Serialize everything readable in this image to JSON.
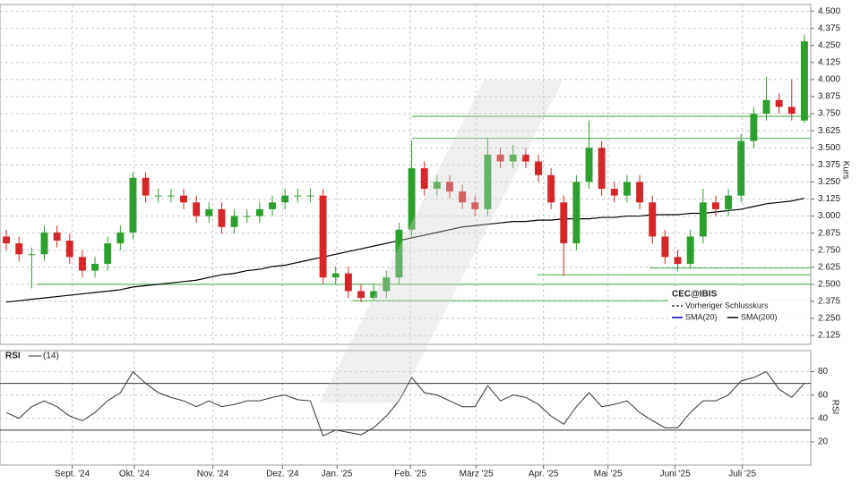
{
  "chart_data": [
    {
      "type": "candlestick",
      "ylabel": "Kurs",
      "categories": [
        null,
        null,
        null,
        null,
        null,
        null,
        null,
        null,
        null,
        null,
        null,
        null,
        null,
        null,
        null,
        null,
        null,
        null,
        null,
        null,
        null,
        null,
        null,
        null,
        null,
        null,
        null,
        null,
        null,
        null,
        null,
        null,
        null,
        null,
        null,
        null,
        null,
        null,
        null,
        null,
        null,
        null,
        null,
        null,
        null,
        null,
        null,
        null,
        null,
        null,
        null,
        null,
        null,
        null,
        null,
        null,
        null,
        null,
        null,
        null,
        null,
        null,
        null,
        null
      ],
      "open": [
        2.85,
        2.8,
        2.72,
        2.72,
        2.88,
        2.82,
        2.7,
        2.6,
        2.65,
        2.8,
        2.88,
        3.28,
        3.15,
        3.15,
        3.15,
        3.1,
        3.0,
        3.05,
        2.92,
        3.0,
        3.0,
        3.05,
        3.1,
        3.15,
        3.15,
        3.15,
        2.55,
        2.58,
        2.45,
        2.4,
        2.45,
        2.55,
        2.9,
        3.35,
        3.2,
        3.25,
        3.18,
        3.1,
        3.05,
        3.45,
        3.4,
        3.45,
        3.4,
        3.3,
        3.1,
        2.8,
        3.25,
        3.5,
        3.2,
        3.15,
        3.25,
        3.1,
        2.85,
        2.7,
        2.65,
        2.85,
        3.1,
        3.05,
        3.15,
        3.55,
        3.75,
        3.85,
        3.8,
        3.7
      ],
      "high": [
        2.9,
        2.85,
        2.77,
        2.93,
        2.93,
        2.87,
        2.75,
        2.7,
        2.85,
        2.93,
        3.32,
        3.32,
        3.2,
        3.2,
        3.2,
        3.15,
        3.1,
        3.1,
        3.05,
        3.05,
        3.1,
        3.15,
        3.2,
        3.2,
        3.2,
        3.2,
        2.63,
        2.63,
        2.5,
        2.5,
        2.6,
        2.95,
        3.55,
        3.4,
        3.3,
        3.3,
        3.23,
        3.15,
        3.57,
        3.5,
        3.52,
        3.5,
        3.45,
        3.35,
        3.15,
        3.3,
        3.7,
        3.55,
        3.25,
        3.3,
        3.3,
        3.15,
        2.9,
        2.75,
        2.9,
        3.2,
        3.15,
        3.2,
        3.6,
        3.8,
        4.02,
        3.9,
        4.0,
        4.33
      ],
      "low": [
        2.75,
        2.67,
        2.47,
        2.67,
        2.77,
        2.65,
        2.55,
        2.55,
        2.6,
        2.75,
        2.83,
        3.1,
        3.1,
        3.1,
        3.05,
        2.95,
        2.95,
        2.87,
        2.87,
        2.95,
        2.95,
        3.0,
        3.05,
        3.1,
        3.1,
        2.5,
        2.5,
        2.4,
        2.37,
        2.38,
        2.4,
        2.5,
        2.85,
        3.15,
        3.15,
        3.13,
        3.05,
        3.0,
        3.0,
        3.35,
        3.35,
        3.35,
        3.25,
        3.05,
        2.56,
        2.75,
        3.2,
        3.15,
        3.1,
        3.1,
        3.05,
        2.8,
        2.65,
        2.6,
        2.62,
        2.8,
        3.0,
        3.0,
        3.1,
        3.5,
        3.7,
        3.75,
        3.7,
        3.68
      ],
      "close": [
        2.8,
        2.72,
        2.72,
        2.88,
        2.82,
        2.7,
        2.6,
        2.65,
        2.8,
        2.88,
        3.28,
        3.15,
        3.15,
        3.15,
        3.1,
        3.0,
        3.05,
        2.92,
        3.0,
        3.0,
        3.05,
        3.1,
        3.15,
        3.15,
        3.15,
        2.55,
        2.58,
        2.45,
        2.4,
        2.45,
        2.55,
        2.9,
        3.35,
        3.2,
        3.25,
        3.18,
        3.1,
        3.05,
        3.45,
        3.4,
        3.45,
        3.4,
        3.3,
        3.1,
        2.8,
        3.25,
        3.5,
        3.2,
        3.15,
        3.25,
        3.1,
        2.85,
        2.7,
        2.65,
        2.85,
        3.1,
        3.05,
        3.15,
        3.55,
        3.75,
        3.85,
        3.8,
        3.75,
        4.28
      ],
      "up_color": "#2ca02c",
      "down_color": "#d62728",
      "series": [
        {
          "name": "SMA(200)",
          "color": "#000000",
          "values": [
            2.37,
            2.38,
            2.39,
            2.4,
            2.41,
            2.42,
            2.43,
            2.44,
            2.45,
            2.46,
            2.48,
            2.49,
            2.5,
            2.51,
            2.52,
            2.53,
            2.55,
            2.57,
            2.58,
            2.6,
            2.61,
            2.63,
            2.64,
            2.66,
            2.68,
            2.7,
            2.72,
            2.74,
            2.76,
            2.78,
            2.8,
            2.82,
            2.84,
            2.86,
            2.88,
            2.9,
            2.92,
            2.93,
            2.94,
            2.95,
            2.96,
            2.96,
            2.97,
            2.97,
            2.98,
            2.98,
            2.98,
            2.99,
            2.99,
            3.0,
            3.0,
            3.01,
            3.01,
            3.01,
            3.02,
            3.02,
            3.03,
            3.04,
            3.05,
            3.07,
            3.09,
            3.1,
            3.11,
            3.13
          ]
        }
      ],
      "levels": [
        {
          "value": 3.73,
          "start": 32
        },
        {
          "value": 3.57,
          "start": 32
        },
        {
          "value": 2.62,
          "start": 50.8
        },
        {
          "value": 2.57,
          "start": 41.9
        },
        {
          "value": 2.5,
          "start": 2.4
        },
        {
          "value": 2.38,
          "start": 27.3
        }
      ],
      "level_color": "#5cb85c",
      "legend": {
        "title": "CEC@IBIS",
        "items": [
          {
            "name": "Vorheriger Schlusskurs",
            "color": "#333333",
            "dash": true
          },
          {
            "name": "SMA(20)",
            "color": "#0000cc"
          }
        ]
      },
      "ylim": [
        2.06,
        4.55
      ],
      "yticks": [
        {
          "value": 2.125,
          "label": "2.125"
        },
        {
          "value": 2.25,
          "label": "2.250"
        },
        {
          "value": 2.375,
          "label": "2.375"
        },
        {
          "value": 2.5,
          "label": "2.500"
        },
        {
          "value": 2.625,
          "label": "2.625"
        },
        {
          "value": 2.75,
          "label": "2.750"
        },
        {
          "value": 2.875,
          "label": "2.875"
        },
        {
          "value": 3,
          "label": "3.000"
        },
        {
          "value": 3.125,
          "label": "3.125"
        },
        {
          "value": 3.25,
          "label": "3.250"
        },
        {
          "value": 3.375,
          "label": "3.375"
        },
        {
          "value": 3.5,
          "label": "3.500"
        },
        {
          "value": 3.625,
          "label": "3.625"
        },
        {
          "value": 3.75,
          "label": "3.750"
        },
        {
          "value": 3.875,
          "label": "3.875"
        },
        {
          "value": 4,
          "label": "4.000"
        },
        {
          "value": 4.125,
          "label": "4.125"
        },
        {
          "value": 4.25,
          "label": "4.250"
        },
        {
          "value": 4.375,
          "label": "4.375"
        },
        {
          "value": 4.5,
          "label": "4.500"
        }
      ],
      "grid": true
    },
    {
      "type": "line",
      "title": "RSI",
      "period_label": "(14)",
      "ylabel": "RSI",
      "series": [
        {
          "name": "RSI",
          "color": "#333333",
          "values": [
            45,
            40,
            50,
            55,
            50,
            42,
            38,
            45,
            55,
            62,
            80,
            70,
            62,
            58,
            55,
            50,
            55,
            50,
            52,
            55,
            55,
            58,
            60,
            56,
            55,
            25,
            30,
            28,
            26,
            32,
            42,
            55,
            75,
            62,
            60,
            55,
            50,
            50,
            68,
            55,
            60,
            58,
            52,
            42,
            35,
            50,
            62,
            50,
            52,
            55,
            45,
            38,
            32,
            32,
            45,
            55,
            55,
            60,
            72,
            75,
            80,
            65,
            58,
            70
          ]
        }
      ],
      "bands": [
        70,
        30
      ],
      "ylim": [
        0,
        98
      ],
      "yticks": [
        20,
        40,
        60,
        80
      ],
      "xticks": [
        {
          "value": 5.2,
          "label": "Sept. '24"
        },
        {
          "value": 10.1,
          "label": "Okt. '24"
        },
        {
          "value": 16.3,
          "label": "Nov. '24"
        },
        {
          "value": 21.8,
          "label": "Dez. '24"
        },
        {
          "value": 26.1,
          "label": "Jan. '25"
        },
        {
          "value": 31.9,
          "label": "Feb. '25"
        },
        {
          "value": 37.1,
          "label": "März '25"
        },
        {
          "value": 42.4,
          "label": "Apr. '25"
        },
        {
          "value": 47.5,
          "label": "Mai '25"
        },
        {
          "value": 52.8,
          "label": "Juni '25"
        },
        {
          "value": 58.1,
          "label": "Juli '25"
        }
      ],
      "grid": true
    }
  ]
}
